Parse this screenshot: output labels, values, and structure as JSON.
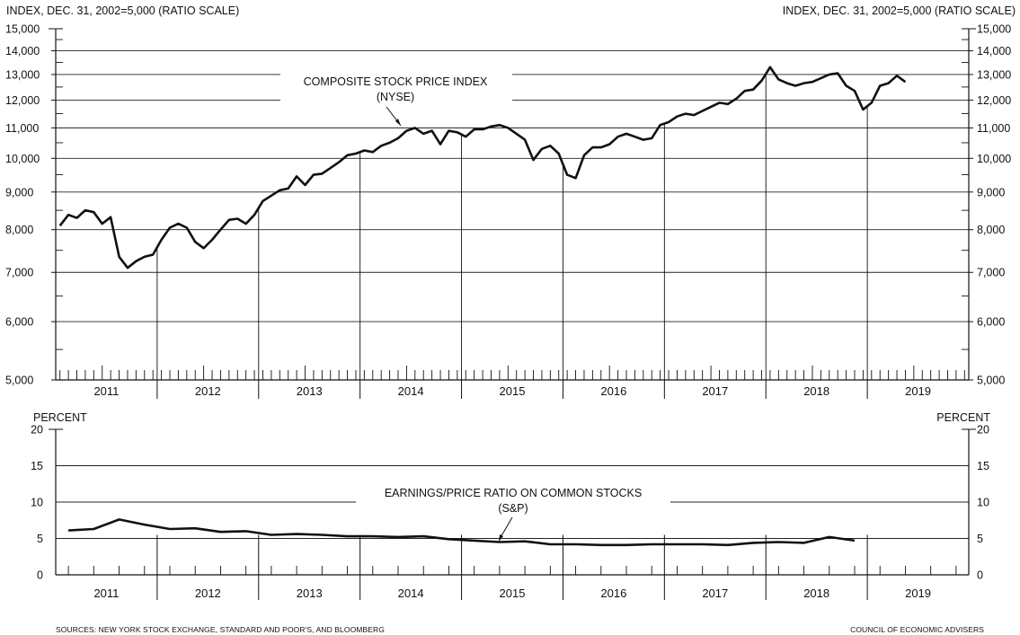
{
  "top_panel": {
    "left_axis_label": "INDEX, DEC. 31, 2002=5,000 (RATIO SCALE)",
    "right_axis_label": "INDEX, DEC. 31, 2002=5,000 (RATIO SCALE)",
    "annotation_line1": "COMPOSITE STOCK PRICE INDEX",
    "annotation_line2": "(NYSE)"
  },
  "bottom_panel": {
    "left_axis_label": "PERCENT",
    "right_axis_label": "PERCENT",
    "annotation_line1": "EARNINGS/PRICE RATIO ON COMMON STOCKS",
    "annotation_line2": "(S&P)"
  },
  "footer": {
    "sources": "SOURCES: NEW YORK STOCK EXCHANGE, STANDARD AND POOR'S, AND BLOOMBERG",
    "credit": "COUNCIL OF ECONOMIC ADVISERS"
  },
  "chart_data": [
    {
      "type": "line",
      "scale": "log",
      "frequency": "monthly",
      "series": [
        {
          "name": "COMPOSITE STOCK PRICE INDEX (NYSE)",
          "start": "2011-01",
          "values": [
            8100,
            8380,
            8300,
            8500,
            8450,
            8150,
            8320,
            7350,
            7100,
            7250,
            7350,
            7400,
            7750,
            8050,
            8150,
            8050,
            7700,
            7550,
            7750,
            8000,
            8250,
            8280,
            8150,
            8380,
            8750,
            8900,
            9050,
            9100,
            9450,
            9200,
            9500,
            9530,
            9700,
            9880,
            10100,
            10150,
            10250,
            10200,
            10400,
            10500,
            10650,
            10900,
            11000,
            10800,
            10900,
            10450,
            10900,
            10850,
            10700,
            10950,
            10950,
            11050,
            11100,
            11000,
            10800,
            10600,
            9950,
            10300,
            10400,
            10150,
            9500,
            9400,
            10100,
            10350,
            10350,
            10450,
            10700,
            10800,
            10700,
            10600,
            10650,
            11100,
            11200,
            11400,
            11500,
            11450,
            11600,
            11750,
            11900,
            11850,
            12050,
            12350,
            12400,
            12750,
            13300,
            12800,
            12650,
            12550,
            12650,
            12700,
            12850,
            13000,
            13050,
            12550,
            12350,
            11650,
            11900,
            12550,
            12650,
            12950,
            12700
          ]
        }
      ],
      "y_ticks": [
        5000,
        6000,
        7000,
        8000,
        9000,
        10000,
        11000,
        12000,
        13000,
        14000,
        15000
      ],
      "y_tick_labels": [
        "5,000",
        "6,000",
        "7,000",
        "8,000",
        "9,000",
        "10,000",
        "11,000",
        "12,000",
        "13,000",
        "14,000",
        "15,000"
      ],
      "ylim": [
        5000,
        15000
      ],
      "x_categories": [
        "2011",
        "2012",
        "2013",
        "2014",
        "2015",
        "2016",
        "2017",
        "2018",
        "2019"
      ]
    },
    {
      "type": "line",
      "frequency": "quarterly",
      "series": [
        {
          "name": "EARNINGS/PRICE RATIO ON COMMON STOCKS (S&P)",
          "start": "2011-Q1",
          "values": [
            6.1,
            6.3,
            7.6,
            6.9,
            6.3,
            6.4,
            5.9,
            6.0,
            5.5,
            5.6,
            5.5,
            5.3,
            5.3,
            5.2,
            5.3,
            4.9,
            4.7,
            4.5,
            4.6,
            4.2,
            4.2,
            4.1,
            4.1,
            4.2,
            4.2,
            4.2,
            4.1,
            4.4,
            4.5,
            4.4,
            5.2,
            4.7
          ]
        }
      ],
      "y_ticks": [
        0,
        5,
        10,
        15,
        20
      ],
      "ylim": [
        0,
        20
      ],
      "x_categories": [
        "2011",
        "2012",
        "2013",
        "2014",
        "2015",
        "2016",
        "2017",
        "2018",
        "2019"
      ]
    }
  ]
}
